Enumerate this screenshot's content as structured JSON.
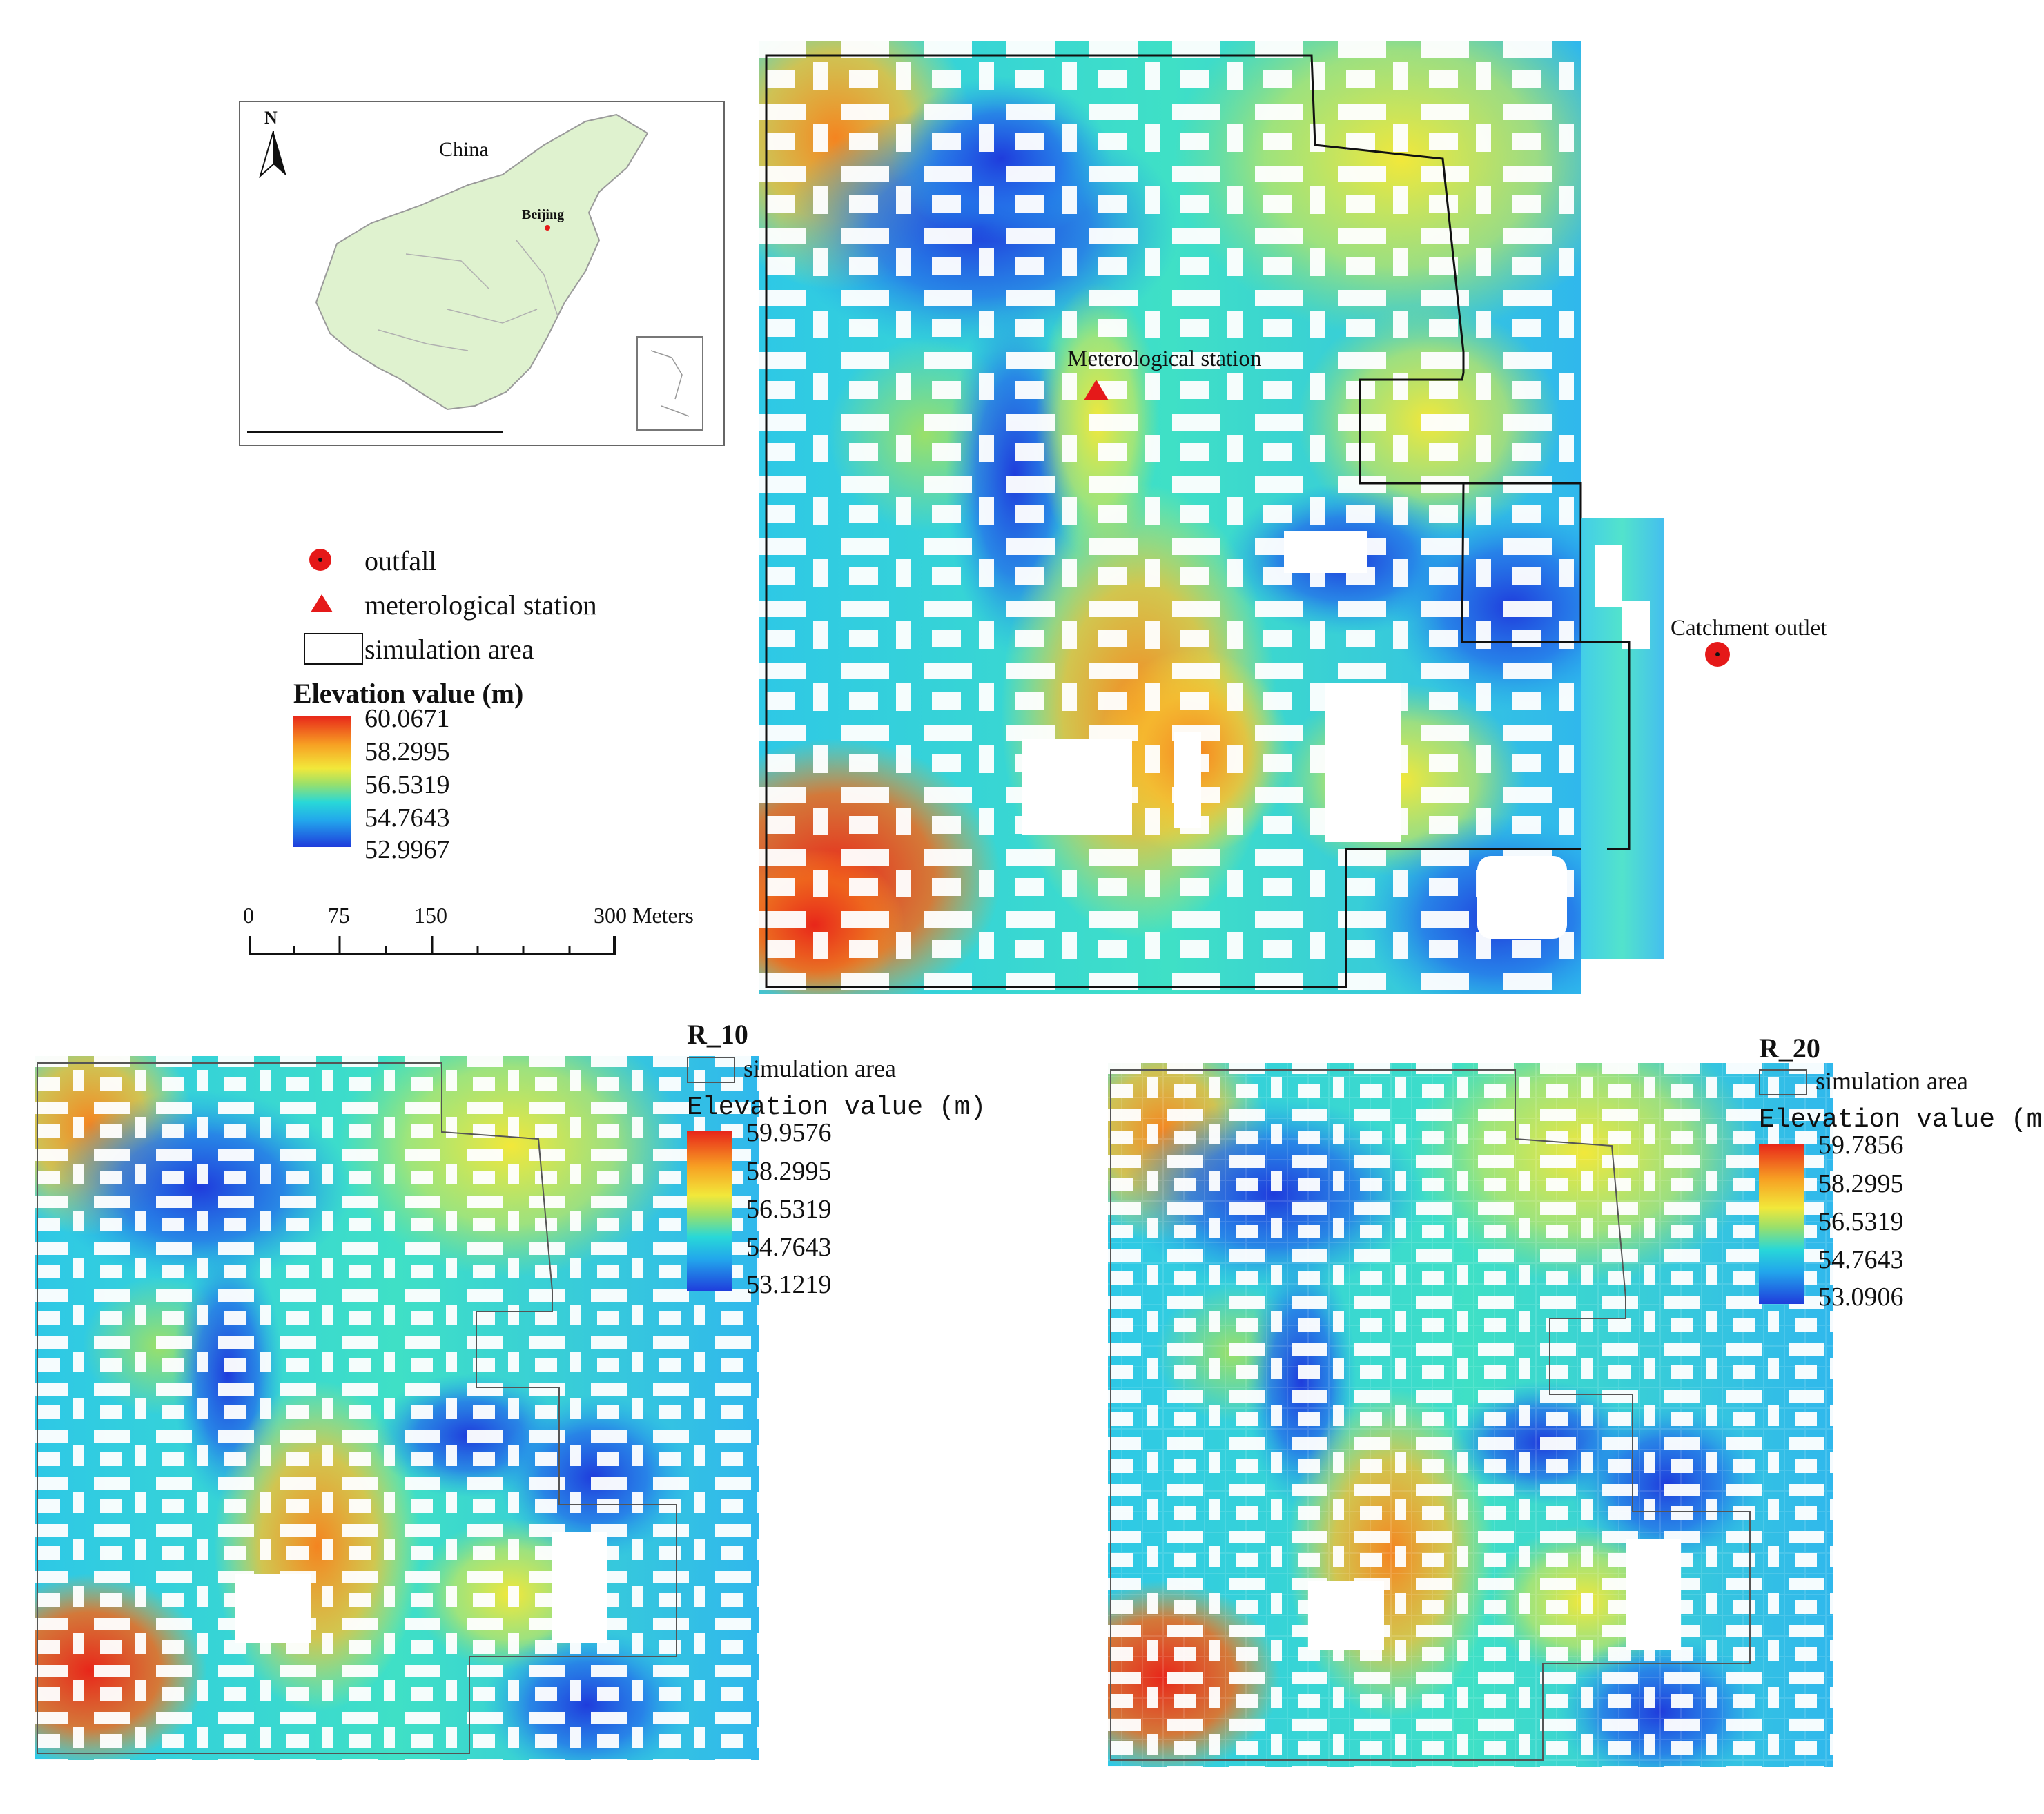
{
  "inset_map": {
    "country_label": "China",
    "city_label": "Beijing",
    "north_label": "N"
  },
  "legend_main": {
    "outfall_label": "outfall",
    "station_label": "meterological station",
    "simulation_area_label": "simulation area",
    "elevation_title": "Elevation value (m)",
    "ramp_values": [
      "60.0671",
      "58.2995",
      "56.5319",
      "54.7643",
      "52.9967"
    ]
  },
  "scale_bar": {
    "ticks": [
      "0",
      "75",
      "150",
      "300 Meters"
    ]
  },
  "main_map": {
    "station_label": "Meterological station",
    "outlet_label": "Catchment outlet"
  },
  "panel_r10": {
    "title": "R_10",
    "simulation_area_label": "simulation area",
    "elevation_title": "Elevation value (m)",
    "ramp_values": [
      "59.9576",
      "58.2995",
      "56.5319",
      "54.7643",
      "53.1219"
    ]
  },
  "panel_r20": {
    "title": "R_20",
    "simulation_area_label": "simulation area",
    "elevation_title": "Elevation value (m)",
    "ramp_values": [
      "59.7856",
      "58.2995",
      "56.5319",
      "54.7643",
      "53.0906"
    ]
  },
  "colors": {
    "ramp_high": "#e8261a",
    "ramp_orange": "#f7a023",
    "ramp_yellow": "#f2e83a",
    "ramp_cyan": "#28d8d8",
    "ramp_low": "#1f3cdc",
    "marker_red": "#e51919"
  }
}
